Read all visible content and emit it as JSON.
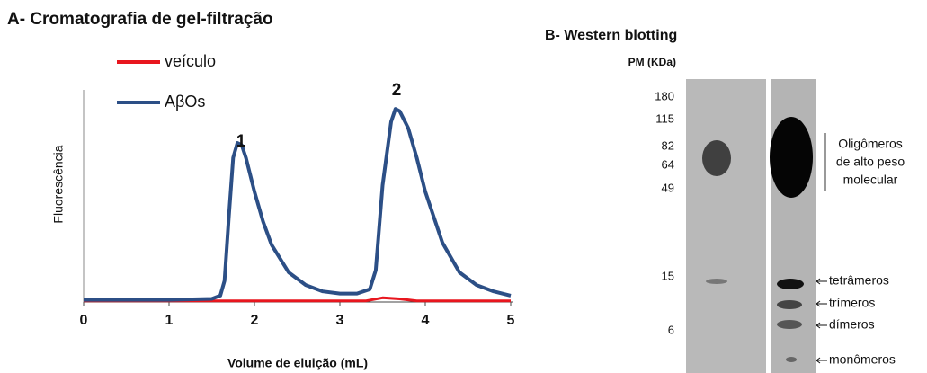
{
  "chart_data": {
    "type": "line",
    "title": "A- Cromatografia de gel-filtração",
    "x_label": "Volume de eluição (mL)",
    "y_label": "Fluorescência",
    "series": [
      {
        "name": "veículo",
        "color": "#e8161e",
        "x": [
          0,
          3.3,
          3.5,
          3.7,
          3.9,
          5
        ],
        "values": [
          0.5,
          0.5,
          2,
          1.5,
          0.5,
          0.5
        ]
      },
      {
        "name": "AβOs",
        "color": "#2c4f86",
        "x": [
          0,
          1,
          1.5,
          1.6,
          1.65,
          1.7,
          1.75,
          1.8,
          1.85,
          1.9,
          2,
          2.1,
          2.2,
          2.4,
          2.6,
          2.8,
          3,
          3.2,
          3.35,
          3.42,
          3.5,
          3.6,
          3.65,
          3.7,
          3.8,
          3.9,
          4,
          4.2,
          4.4,
          4.6,
          4.8,
          5
        ],
        "values": [
          1,
          1,
          1.5,
          3,
          10,
          40,
          68,
          75,
          74,
          68,
          52,
          38,
          27,
          14,
          8,
          5,
          4,
          4,
          6,
          15,
          55,
          85,
          91,
          90,
          82,
          68,
          52,
          28,
          14,
          8,
          5,
          3
        ]
      }
    ],
    "annotations": [
      "1",
      "2"
    ],
    "xlim": [
      0,
      5
    ],
    "xticks": [
      0,
      1,
      2,
      3,
      4,
      5
    ],
    "ylim": [
      0,
      100
    ]
  },
  "western_blot": {
    "title": "B- Western blotting",
    "marker_title": "PM (KDa)",
    "markers": [
      180,
      115,
      82,
      64,
      49,
      15,
      6
    ],
    "oligomer_label": [
      "Oligômeros",
      "de alto peso",
      "molecular"
    ],
    "band_labels": [
      "tetrâmeros",
      "trímeros",
      "dímeros",
      "monômeros"
    ]
  }
}
